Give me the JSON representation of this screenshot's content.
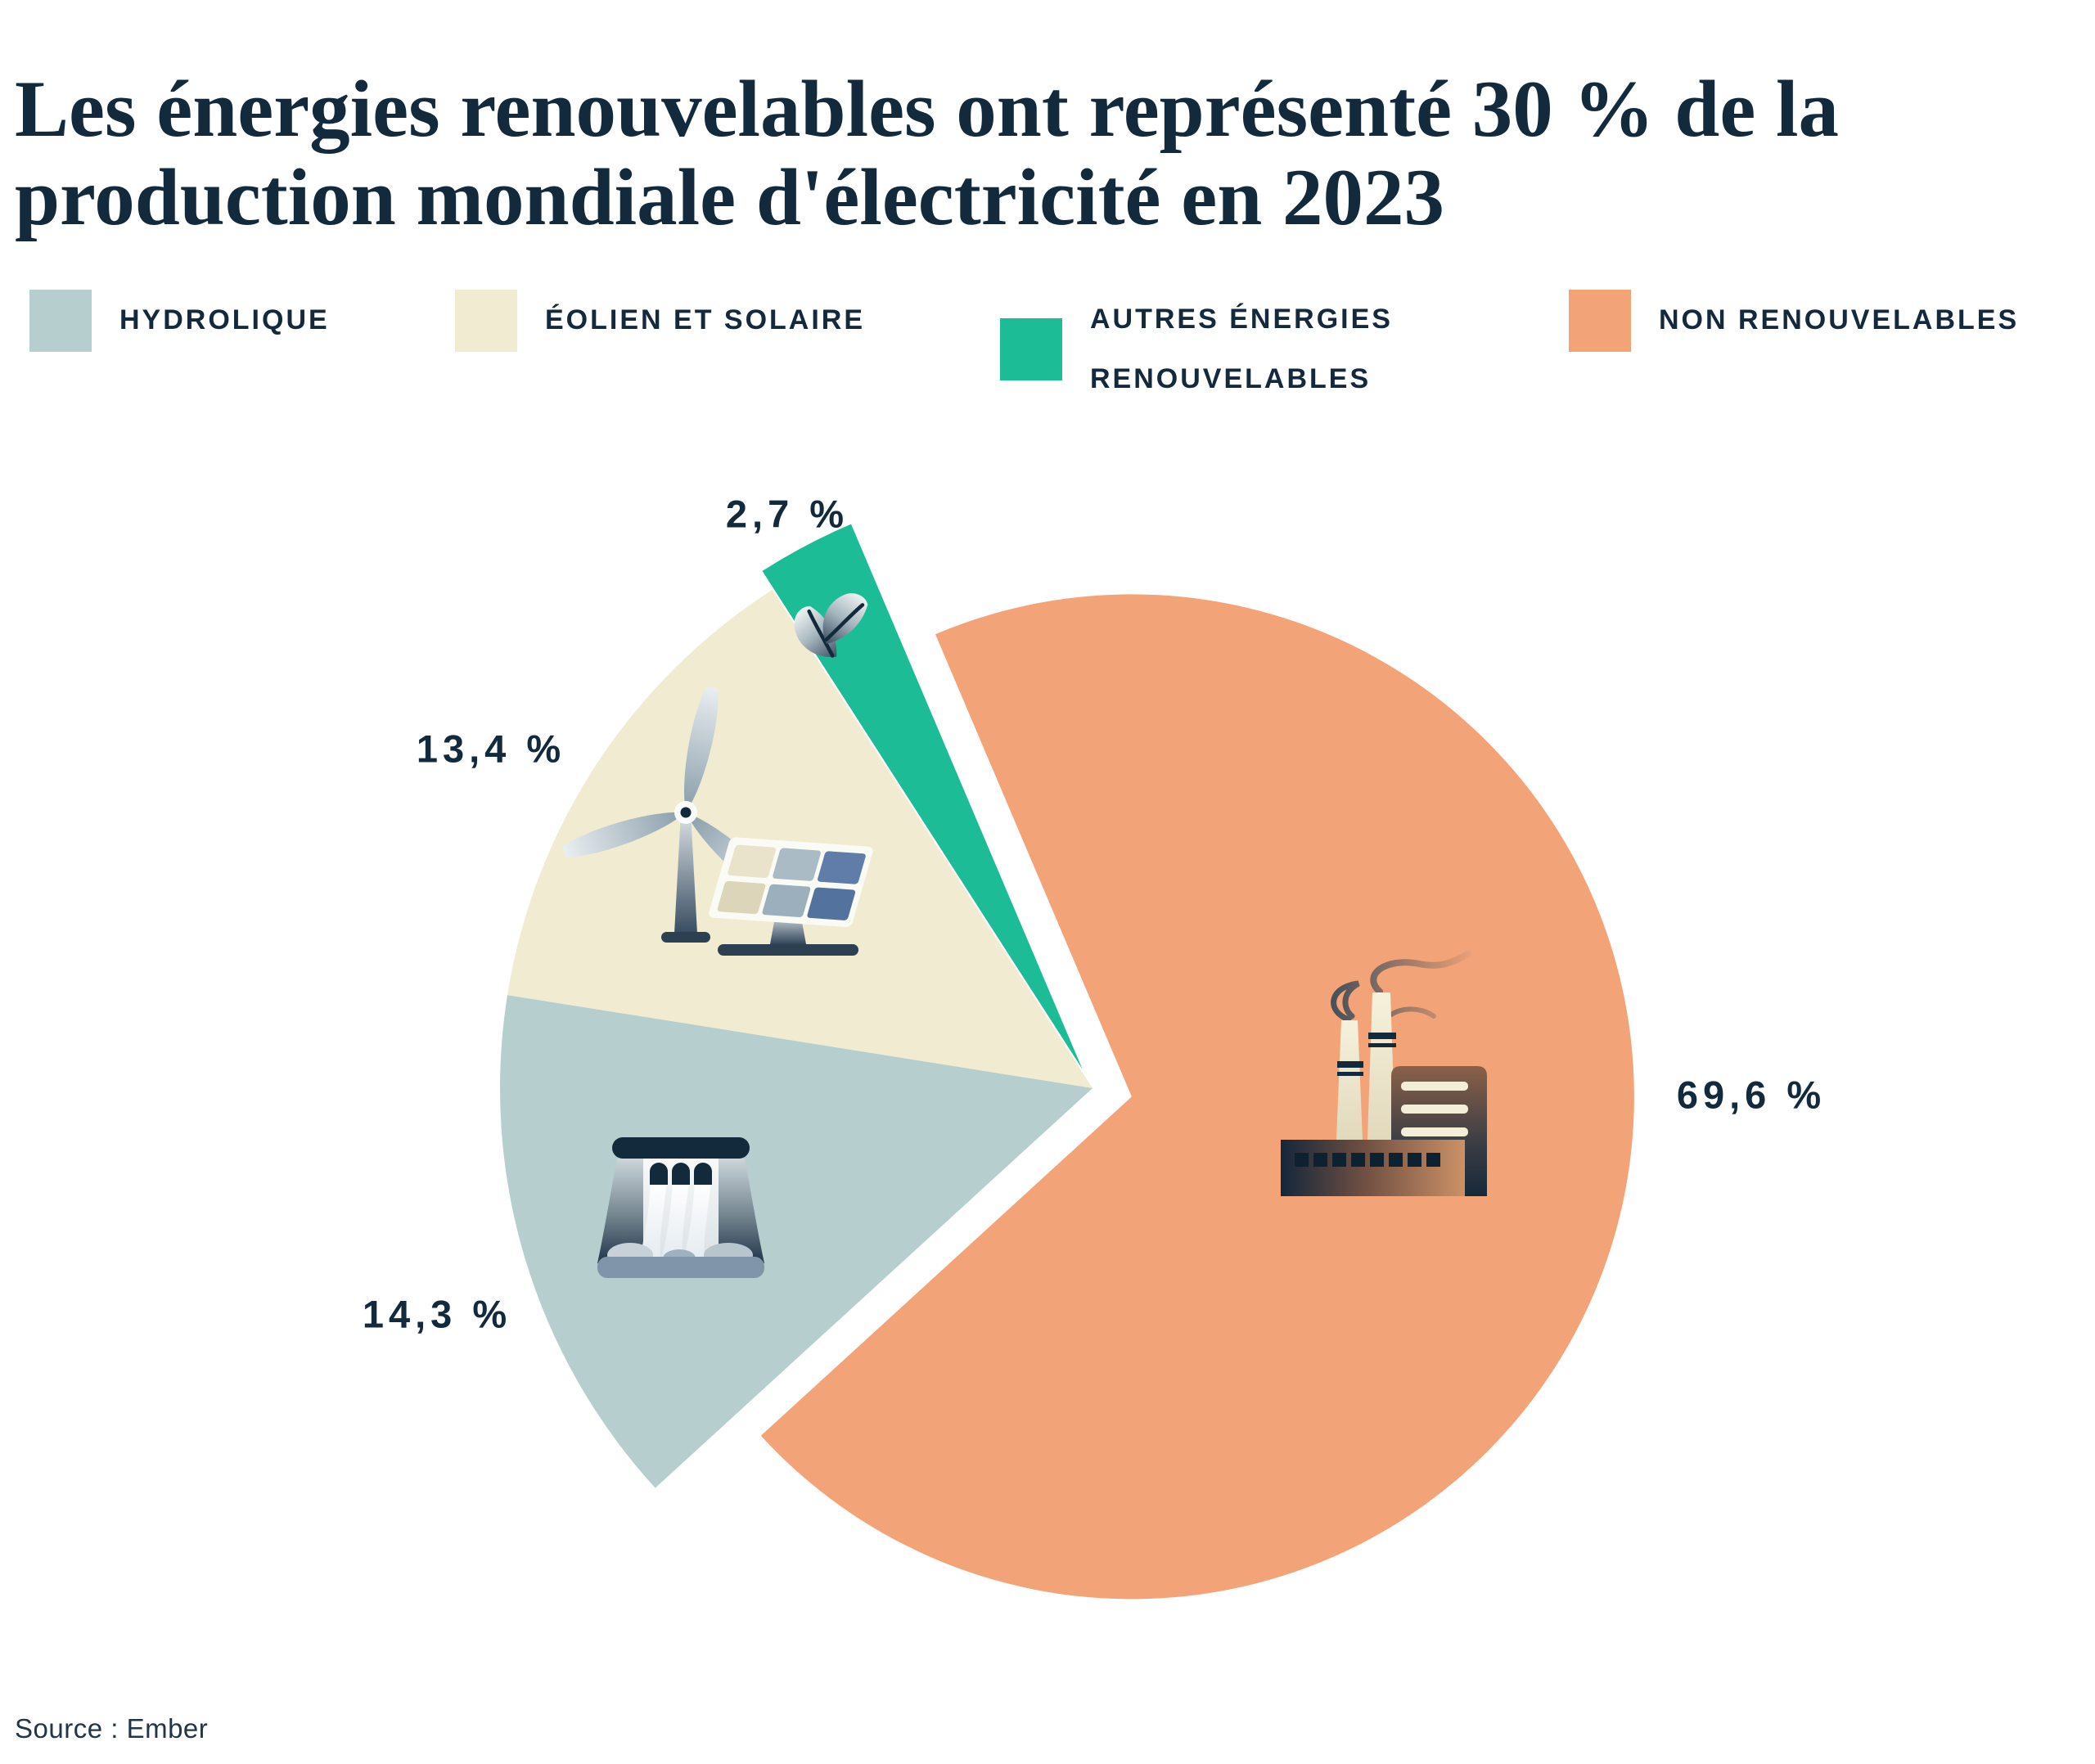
{
  "title": "Les énergies renouvelables ont représenté 30 % de la production mondiale d'électricité en 2023",
  "source": "Source : Ember",
  "colors": {
    "text_navy": "#13293c",
    "hydro": "#B7CECE",
    "wind_solar": "#F0EBD1",
    "other_renewables": "#1CBD96",
    "non_renewable": "#F2A378",
    "background": "#ffffff"
  },
  "legend": {
    "items": [
      {
        "label": "HYDROLIQUE",
        "color": "#B7CECE"
      },
      {
        "label": "ÉOLIEN ET SOLAIRE",
        "color": "#F0EBD1"
      },
      {
        "label": "AUTRES ÉNERGIES RENOUVELABLES",
        "color": "#1CBD96"
      },
      {
        "label": "NON RENOUVELABLES",
        "color": "#F2A378"
      }
    ]
  },
  "chart_data": {
    "type": "pie",
    "title": "Les énergies renouvelables ont représenté 30 % de la production mondiale d'électricité en 2023",
    "unit": "%",
    "categories": [
      "Autres énergies renouvelables",
      "Éolien et solaire",
      "Hydrolique",
      "Non renouvelables"
    ],
    "values": [
      2.7,
      13.4,
      14.3,
      69.6
    ],
    "slices": [
      {
        "name": "Autres énergies renouvelables",
        "value": 2.7,
        "label": "2,7 %",
        "color": "#1CBD96",
        "icon": "leaf-icon"
      },
      {
        "name": "Éolien et solaire",
        "value": 13.4,
        "label": "13,4 %",
        "color": "#F0EBD1",
        "icon": "wind-turbine-and-solar-panel-icon"
      },
      {
        "name": "Hydrolique",
        "value": 14.3,
        "label": "14,3 %",
        "color": "#B7CECE",
        "icon": "dam-icon"
      },
      {
        "name": "Non renouvelables",
        "value": 69.6,
        "label": "69,6 %",
        "color": "#F2A378",
        "icon": "factory-icon"
      }
    ],
    "legend_position": "top",
    "start_angle_deg": 113,
    "direction": "counterclockwise",
    "exploded_slice": "Non renouvelables",
    "source": "Ember"
  }
}
